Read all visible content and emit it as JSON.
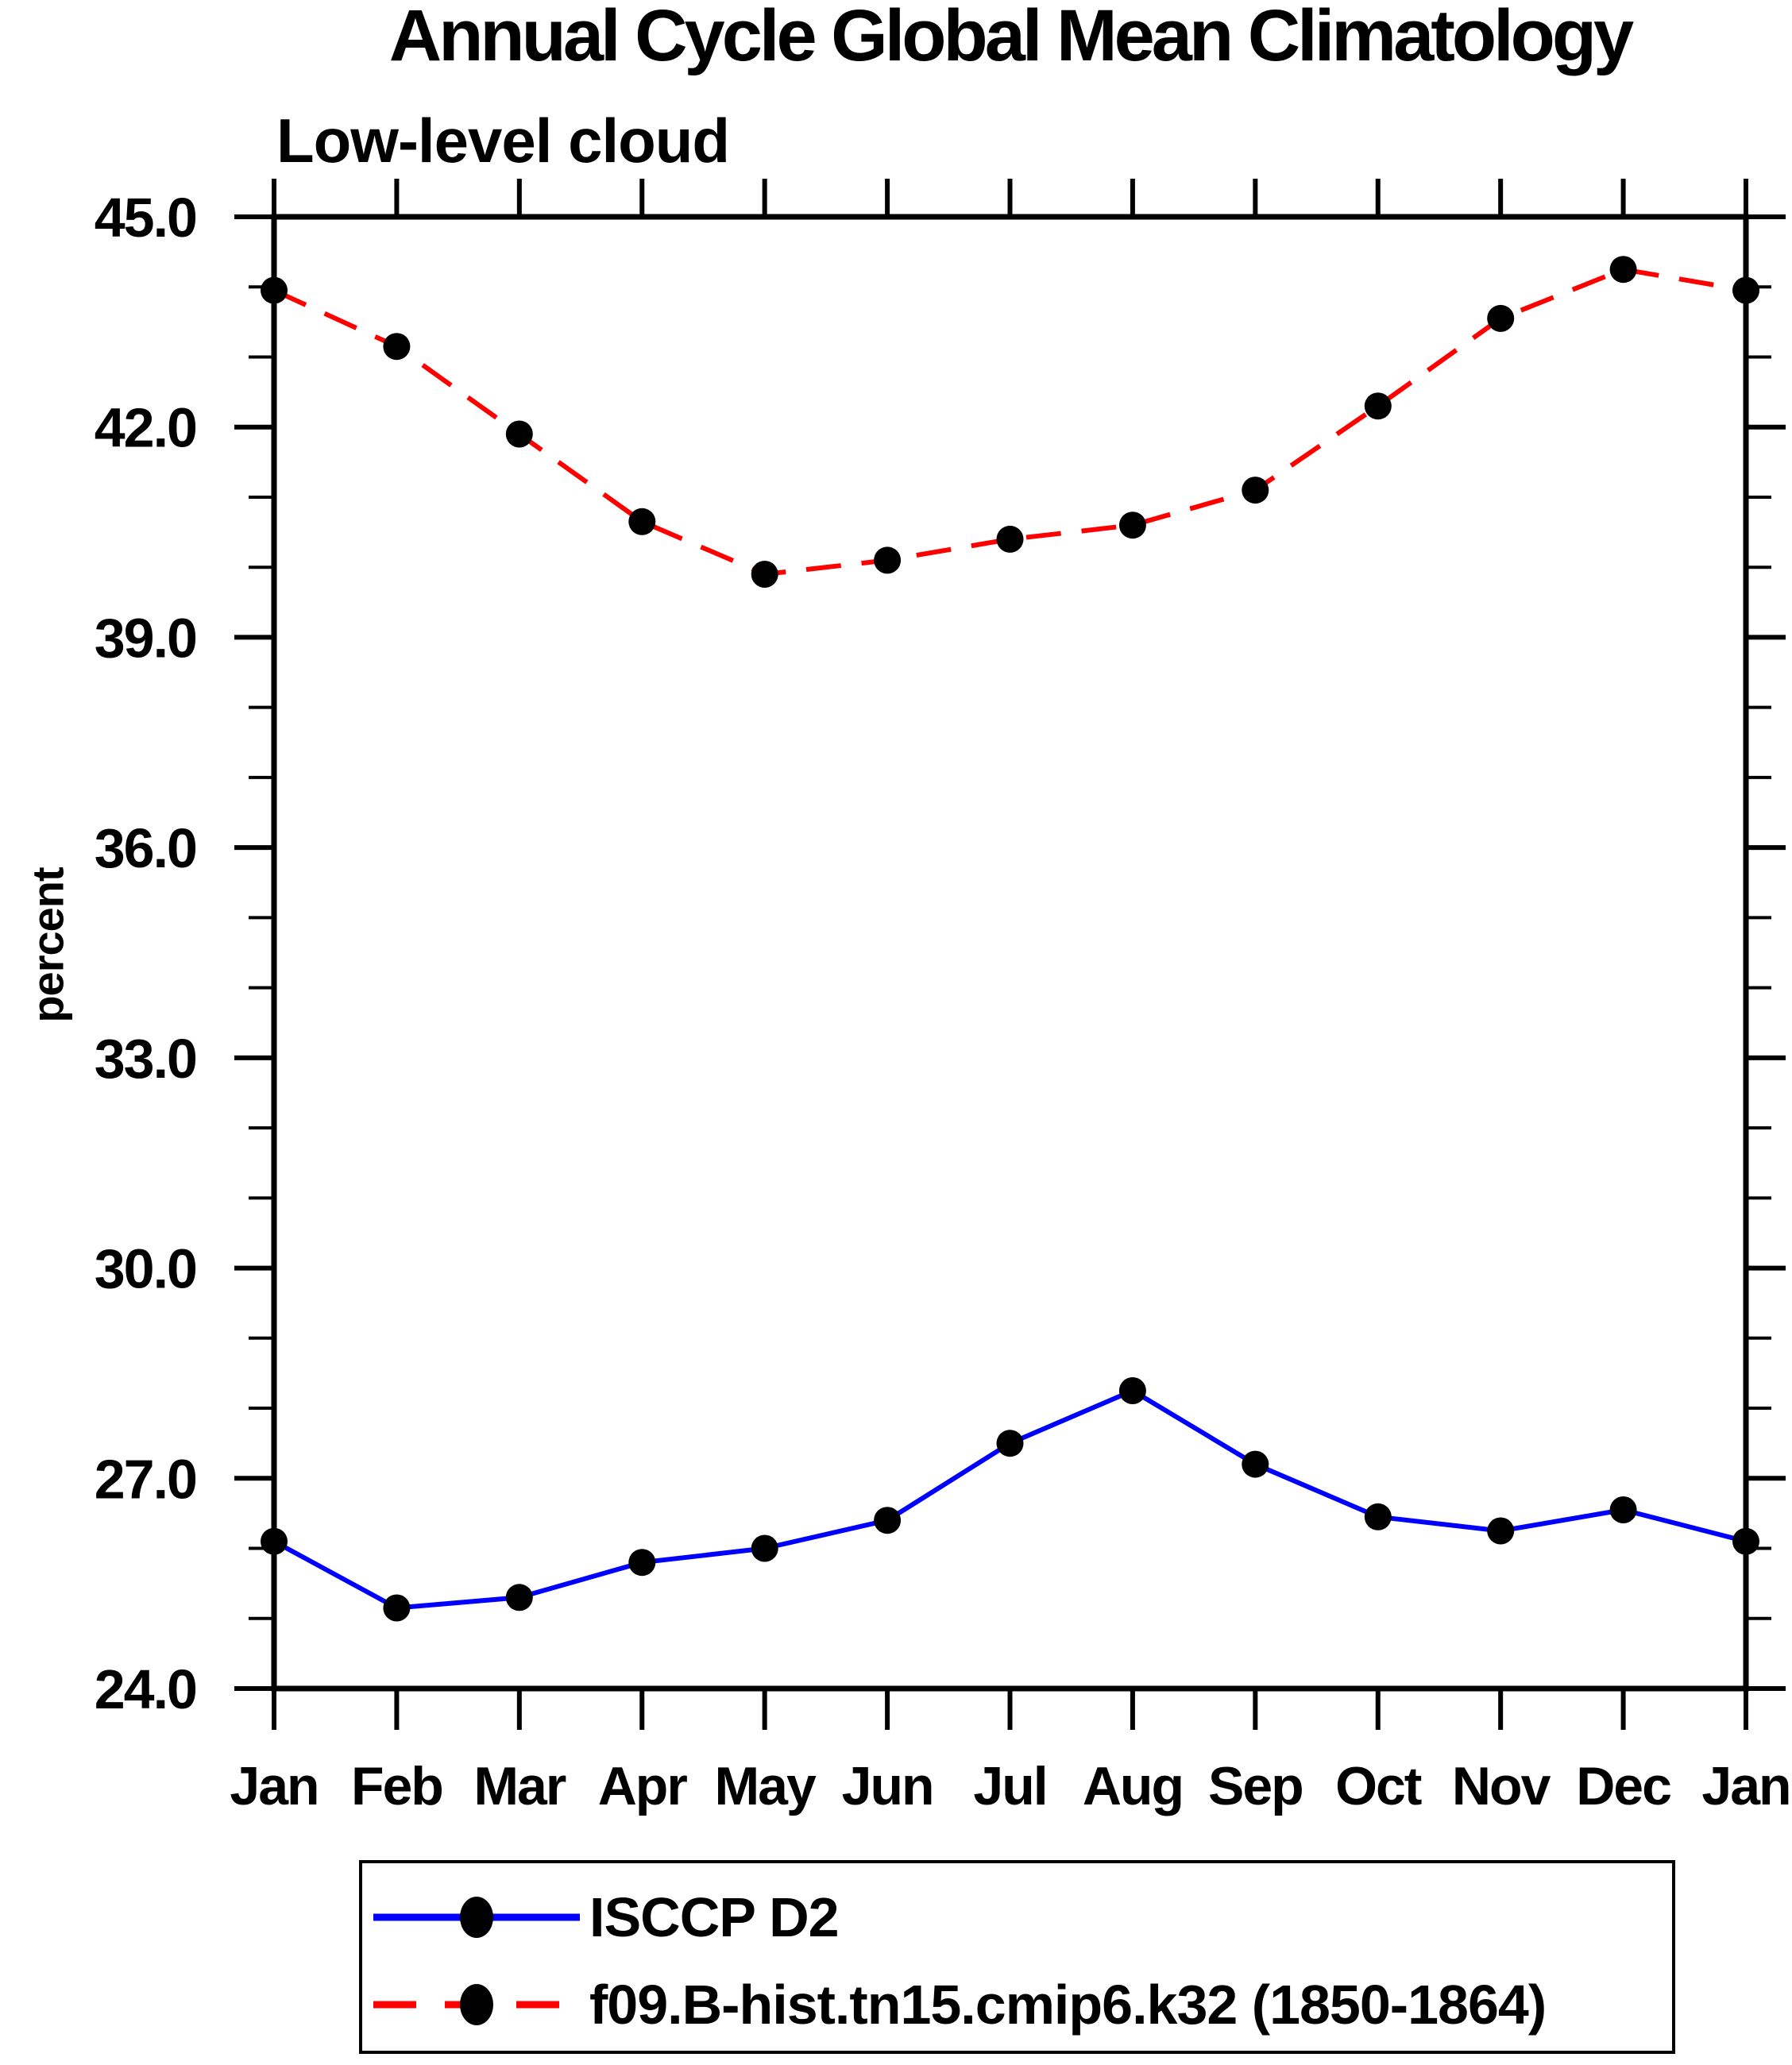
{
  "title": "Annual Cycle Global Mean Climatology",
  "subtitle": "Low-level cloud",
  "y_axis_label": "percent",
  "colors": {
    "obs_line": "#0000ff",
    "model_line": "#ff0000",
    "marker": "#000000",
    "axis": "#000000",
    "background": "#ffffff"
  },
  "legend": {
    "entries": [
      {
        "label": "ISCCP D2",
        "color": "#0000ff",
        "dash": "solid",
        "marker": "filled-circle"
      },
      {
        "label": "f09.B-hist.tn15.cmip6.k32 (1850-1864)",
        "color": "#ff0000",
        "dash": "dashed",
        "marker": "filled-circle"
      }
    ]
  },
  "chart_data": {
    "type": "line",
    "title": "Annual Cycle Global Mean Climatology",
    "subtitle": "Low-level cloud",
    "xlabel": "",
    "ylabel": "percent",
    "x_categories": [
      "Jan",
      "Feb",
      "Mar",
      "Apr",
      "May",
      "Jun",
      "Jul",
      "Aug",
      "Sep",
      "Oct",
      "Nov",
      "Dec",
      "Jan"
    ],
    "ylim": [
      24.0,
      45.0
    ],
    "ytick_major": [
      24,
      27,
      30,
      33,
      36,
      39,
      42,
      45
    ],
    "ytick_major_labels": [
      "24.0",
      "27.0",
      "30.0",
      "33.0",
      "36.0",
      "39.0",
      "42.0",
      "45.0"
    ],
    "ytick_minor_step": 1.0,
    "grid": false,
    "legend_position": "bottom",
    "marker": "filled-circle",
    "series": [
      {
        "name": "ISCCP D2",
        "color": "#0000ff",
        "line": "solid",
        "values": [
          26.1,
          25.15,
          25.3,
          25.8,
          26.0,
          26.4,
          27.5,
          28.25,
          27.2,
          26.45,
          26.25,
          26.55,
          26.1
        ]
      },
      {
        "name": "f09.B-hist.tn15.cmip6.k32 (1850-1864)",
        "color": "#ff0000",
        "line": "dashed",
        "values": [
          43.95,
          43.15,
          41.9,
          40.65,
          39.9,
          40.1,
          40.4,
          40.6,
          41.1,
          42.3,
          43.55,
          44.25,
          43.95
        ]
      }
    ]
  }
}
